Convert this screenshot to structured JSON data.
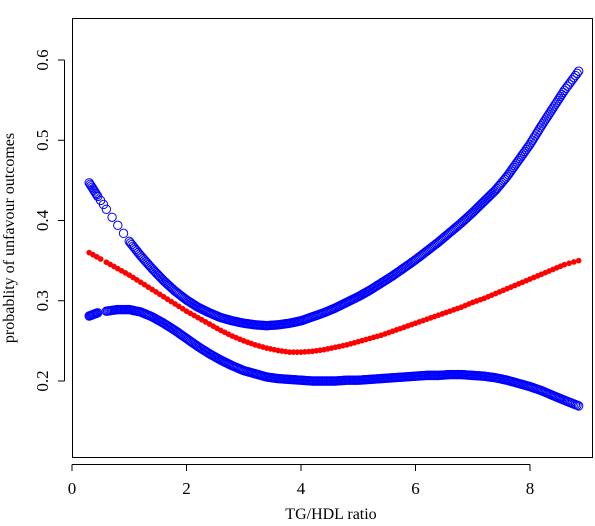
{
  "chart_data": {
    "type": "scatter",
    "title": "",
    "xlabel": "TG/HDL ratio",
    "ylabel": "probablity of unfavour outcomes",
    "xlim": [
      0,
      9
    ],
    "ylim": [
      0.1,
      0.65
    ],
    "x_ticks": [
      "0",
      "2",
      "4",
      "6",
      "8"
    ],
    "y_ticks": [
      "0.2",
      "0.3",
      "0.4",
      "0.5",
      "0.6"
    ],
    "grid": false,
    "legend": "none",
    "series": [
      {
        "role": "upper confidence bound",
        "color": "#0000FF",
        "marker": "open-circle",
        "points": [
          [
            0.3,
            0.447
          ],
          [
            0.45,
            0.43
          ],
          [
            0.5,
            0.425
          ],
          [
            0.55,
            0.42
          ],
          [
            0.6,
            0.414
          ],
          [
            0.7,
            0.404
          ],
          [
            0.8,
            0.394
          ],
          [
            0.9,
            0.384
          ],
          [
            1.0,
            0.374
          ],
          [
            1.2,
            0.356
          ],
          [
            1.4,
            0.34
          ],
          [
            1.6,
            0.325
          ],
          [
            1.8,
            0.312
          ],
          [
            2.0,
            0.301
          ],
          [
            2.2,
            0.292
          ],
          [
            2.4,
            0.285
          ],
          [
            2.6,
            0.279
          ],
          [
            2.8,
            0.275
          ],
          [
            3.0,
            0.272
          ],
          [
            3.2,
            0.27
          ],
          [
            3.4,
            0.269
          ],
          [
            3.6,
            0.27
          ],
          [
            3.8,
            0.272
          ],
          [
            4.0,
            0.275
          ],
          [
            4.2,
            0.28
          ],
          [
            4.4,
            0.285
          ],
          [
            4.6,
            0.291
          ],
          [
            4.8,
            0.298
          ],
          [
            5.0,
            0.305
          ],
          [
            5.2,
            0.313
          ],
          [
            5.4,
            0.322
          ],
          [
            5.6,
            0.331
          ],
          [
            5.8,
            0.341
          ],
          [
            6.0,
            0.351
          ],
          [
            6.2,
            0.362
          ],
          [
            6.4,
            0.373
          ],
          [
            6.6,
            0.385
          ],
          [
            6.8,
            0.397
          ],
          [
            7.0,
            0.41
          ],
          [
            7.2,
            0.424
          ],
          [
            7.4,
            0.438
          ],
          [
            7.6,
            0.455
          ],
          [
            7.8,
            0.475
          ],
          [
            8.0,
            0.495
          ],
          [
            8.2,
            0.518
          ],
          [
            8.4,
            0.54
          ],
          [
            8.6,
            0.562
          ],
          [
            8.85,
            0.586
          ]
        ]
      },
      {
        "role": "estimate",
        "color": "#FF0000",
        "marker": "filled-circle",
        "points": [
          [
            0.3,
            0.36
          ],
          [
            0.5,
            0.352
          ],
          [
            0.6,
            0.348
          ],
          [
            0.8,
            0.34
          ],
          [
            1.0,
            0.332
          ],
          [
            1.2,
            0.323
          ],
          [
            1.4,
            0.314
          ],
          [
            1.6,
            0.305
          ],
          [
            1.8,
            0.296
          ],
          [
            2.0,
            0.287
          ],
          [
            2.2,
            0.279
          ],
          [
            2.4,
            0.271
          ],
          [
            2.6,
            0.263
          ],
          [
            2.8,
            0.256
          ],
          [
            3.0,
            0.25
          ],
          [
            3.2,
            0.245
          ],
          [
            3.4,
            0.241
          ],
          [
            3.6,
            0.238
          ],
          [
            3.8,
            0.236
          ],
          [
            4.0,
            0.236
          ],
          [
            4.2,
            0.237
          ],
          [
            4.4,
            0.239
          ],
          [
            4.6,
            0.242
          ],
          [
            4.8,
            0.245
          ],
          [
            5.0,
            0.249
          ],
          [
            5.2,
            0.253
          ],
          [
            5.4,
            0.257
          ],
          [
            5.6,
            0.262
          ],
          [
            5.8,
            0.267
          ],
          [
            6.0,
            0.272
          ],
          [
            6.2,
            0.277
          ],
          [
            6.4,
            0.282
          ],
          [
            6.6,
            0.287
          ],
          [
            6.8,
            0.292
          ],
          [
            7.0,
            0.298
          ],
          [
            7.2,
            0.303
          ],
          [
            7.4,
            0.309
          ],
          [
            7.6,
            0.315
          ],
          [
            7.8,
            0.321
          ],
          [
            8.0,
            0.327
          ],
          [
            8.2,
            0.333
          ],
          [
            8.4,
            0.339
          ],
          [
            8.6,
            0.345
          ],
          [
            8.85,
            0.35
          ]
        ]
      },
      {
        "role": "lower confidence bound",
        "color": "#0000FF",
        "marker": "open-circle",
        "points": [
          [
            0.3,
            0.281
          ],
          [
            0.45,
            0.285
          ],
          [
            0.6,
            0.287
          ],
          [
            0.8,
            0.289
          ],
          [
            1.0,
            0.289
          ],
          [
            1.2,
            0.286
          ],
          [
            1.4,
            0.28
          ],
          [
            1.6,
            0.272
          ],
          [
            1.8,
            0.263
          ],
          [
            2.0,
            0.253
          ],
          [
            2.2,
            0.243
          ],
          [
            2.4,
            0.234
          ],
          [
            2.6,
            0.226
          ],
          [
            2.8,
            0.219
          ],
          [
            3.0,
            0.213
          ],
          [
            3.2,
            0.209
          ],
          [
            3.4,
            0.205
          ],
          [
            3.6,
            0.203
          ],
          [
            3.8,
            0.202
          ],
          [
            4.0,
            0.201
          ],
          [
            4.2,
            0.2
          ],
          [
            4.4,
            0.2
          ],
          [
            4.6,
            0.2
          ],
          [
            4.8,
            0.201
          ],
          [
            5.0,
            0.201
          ],
          [
            5.2,
            0.202
          ],
          [
            5.4,
            0.203
          ],
          [
            5.6,
            0.204
          ],
          [
            5.8,
            0.205
          ],
          [
            6.0,
            0.206
          ],
          [
            6.2,
            0.207
          ],
          [
            6.4,
            0.207
          ],
          [
            6.6,
            0.208
          ],
          [
            6.8,
            0.208
          ],
          [
            7.0,
            0.207
          ],
          [
            7.2,
            0.206
          ],
          [
            7.4,
            0.204
          ],
          [
            7.6,
            0.201
          ],
          [
            7.8,
            0.197
          ],
          [
            8.0,
            0.193
          ],
          [
            8.2,
            0.188
          ],
          [
            8.4,
            0.182
          ],
          [
            8.6,
            0.176
          ],
          [
            8.85,
            0.169
          ]
        ]
      }
    ]
  }
}
